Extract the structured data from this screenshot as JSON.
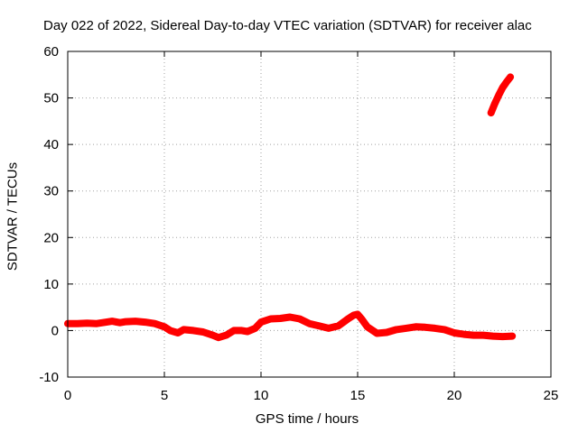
{
  "chart_data": {
    "type": "line",
    "title": "Day 022 of 2022, Sidereal Day-to-day VTEC variation (SDTVAR) for receiver alac",
    "xlabel": "GPS time / hours",
    "ylabel": "SDTVAR / TECUs",
    "xlim": [
      0,
      25
    ],
    "ylim": [
      -10,
      60
    ],
    "xticks": [
      "0",
      "5",
      "10",
      "15",
      "20",
      "25"
    ],
    "yticks": [
      "-10",
      "0",
      "10",
      "20",
      "30",
      "40",
      "50",
      "60"
    ],
    "grid": true,
    "legend": "none",
    "colors": {
      "series": "#ff0000",
      "grid": "#a0a0a0"
    },
    "series": [
      {
        "color": "#ff0000",
        "x": [
          0.0,
          0.5,
          1.0,
          1.5,
          2.0,
          2.3,
          2.7,
          3.0,
          3.5,
          4.0,
          4.5,
          5.0,
          5.3,
          5.7,
          6.0,
          6.5,
          7.0,
          7.5,
          7.8,
          8.2,
          8.6,
          9.0,
          9.3,
          9.7,
          10.0,
          10.5,
          11.0,
          11.5,
          12.0,
          12.5,
          13.0,
          13.5,
          14.0,
          14.5,
          14.8,
          15.0,
          15.2,
          15.5,
          16.0,
          16.5,
          17.0,
          17.5,
          18.0,
          18.5,
          19.0,
          19.5,
          20.0,
          20.5,
          21.0,
          21.5,
          22.0,
          22.5,
          23.0
        ],
        "y": [
          1.5,
          1.5,
          1.6,
          1.5,
          1.8,
          2.0,
          1.7,
          1.9,
          2.0,
          1.8,
          1.5,
          0.8,
          0.0,
          -0.5,
          0.2,
          0.0,
          -0.3,
          -1.0,
          -1.5,
          -1.0,
          0.0,
          0.0,
          -0.2,
          0.5,
          1.8,
          2.5,
          2.6,
          2.9,
          2.5,
          1.5,
          1.0,
          0.5,
          1.0,
          2.5,
          3.3,
          3.5,
          2.5,
          0.8,
          -0.6,
          -0.4,
          0.2,
          0.5,
          0.8,
          0.7,
          0.5,
          0.2,
          -0.5,
          -0.8,
          -1.0,
          -1.0,
          -1.2,
          -1.3,
          -1.2
        ]
      },
      {
        "color": "#ff0000",
        "x": [
          21.9,
          22.1,
          22.3,
          22.5,
          22.7,
          22.9
        ],
        "y": [
          46.8,
          48.8,
          50.6,
          52.2,
          53.4,
          54.5
        ]
      }
    ]
  }
}
